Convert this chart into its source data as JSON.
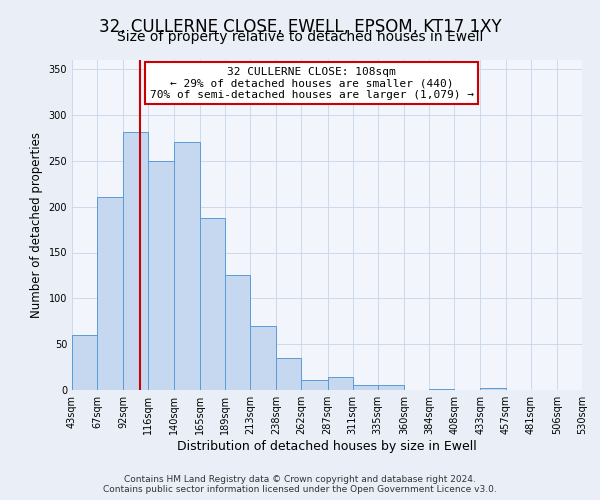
{
  "title": "32, CULLERNE CLOSE, EWELL, EPSOM, KT17 1XY",
  "subtitle": "Size of property relative to detached houses in Ewell",
  "xlabel": "Distribution of detached houses by size in Ewell",
  "ylabel": "Number of detached properties",
  "bar_values": [
    60,
    210,
    281,
    250,
    271,
    188,
    126,
    70,
    35,
    11,
    14,
    6,
    5,
    0,
    1,
    0,
    2,
    0,
    0,
    0
  ],
  "bin_labels": [
    "43sqm",
    "67sqm",
    "92sqm",
    "116sqm",
    "140sqm",
    "165sqm",
    "189sqm",
    "213sqm",
    "238sqm",
    "262sqm",
    "287sqm",
    "311sqm",
    "335sqm",
    "360sqm",
    "384sqm",
    "408sqm",
    "433sqm",
    "457sqm",
    "481sqm",
    "506sqm",
    "530sqm"
  ],
  "bin_edges": [
    43,
    67,
    92,
    116,
    140,
    165,
    189,
    213,
    238,
    262,
    287,
    311,
    335,
    360,
    384,
    408,
    433,
    457,
    481,
    506,
    530
  ],
  "bar_color": "#c5d8f0",
  "bar_edge_color": "#5b9bd5",
  "vline_x": 108,
  "vline_color": "#cc0000",
  "annotation_line1": "32 CULLERNE CLOSE: 108sqm",
  "annotation_line2": "← 29% of detached houses are smaller (440)",
  "annotation_line3": "70% of semi-detached houses are larger (1,079) →",
  "annotation_box_color": "#ffffff",
  "annotation_box_edge": "#cc0000",
  "ylim": [
    0,
    360
  ],
  "yticks": [
    0,
    50,
    100,
    150,
    200,
    250,
    300,
    350
  ],
  "footer_line1": "Contains HM Land Registry data © Crown copyright and database right 2024.",
  "footer_line2": "Contains public sector information licensed under the Open Government Licence v3.0.",
  "bg_color": "#eaeff7",
  "plot_bg_color": "#f2f5fb",
  "grid_color": "#c8d4e8",
  "title_fontsize": 12,
  "subtitle_fontsize": 10,
  "xlabel_fontsize": 9,
  "ylabel_fontsize": 8.5,
  "tick_fontsize": 7,
  "footer_fontsize": 6.5
}
